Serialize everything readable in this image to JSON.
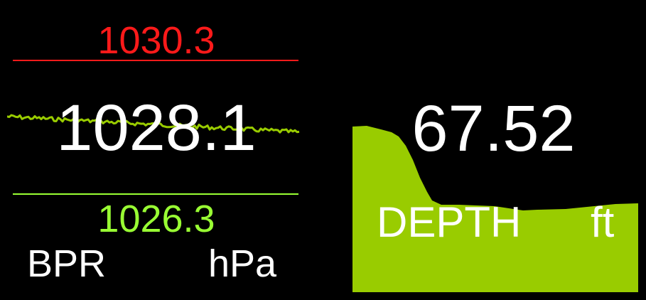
{
  "colors": {
    "background": "#000000",
    "max_color": "#ff1a1a",
    "min_color": "#99ff33",
    "text_color": "#ffffff",
    "trend_color": "#99cc00"
  },
  "bpr": {
    "max_value": "1030.3",
    "current_value": "1028.1",
    "min_value": "1026.3",
    "label": "BPR",
    "unit": "hPa"
  },
  "depth": {
    "value": "67.52",
    "label": "DEPTH",
    "unit": "ft"
  }
}
